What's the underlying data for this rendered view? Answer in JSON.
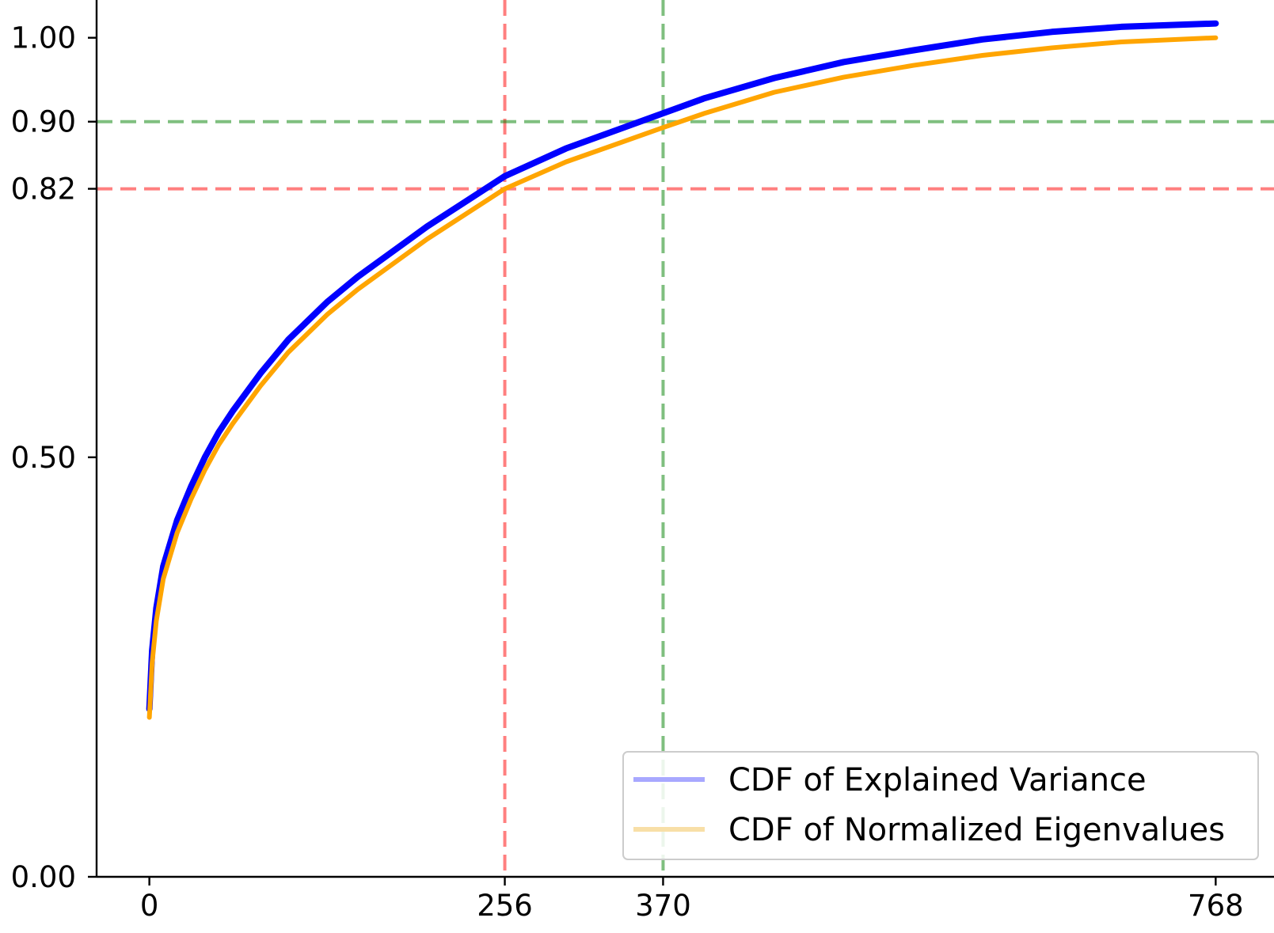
{
  "chart_data": {
    "type": "line",
    "title": "",
    "xlabel": "",
    "ylabel": "",
    "xlim": [
      -38,
      810
    ],
    "ylim": [
      0,
      1.045
    ],
    "x_ticks": [
      {
        "value": 0,
        "label": "0"
      },
      {
        "value": 256,
        "label": "256"
      },
      {
        "value": 370,
        "label": "370"
      },
      {
        "value": 768,
        "label": "768"
      }
    ],
    "y_ticks": [
      {
        "value": 0.0,
        "label": "0.00"
      },
      {
        "value": 0.5,
        "label": "0.50"
      },
      {
        "value": 0.82,
        "label": "0.82"
      },
      {
        "value": 0.9,
        "label": "0.90"
      },
      {
        "value": 1.0,
        "label": "1.00"
      }
    ],
    "series": [
      {
        "name": "CDF of Explained Variance",
        "color": "#0000ff",
        "legend_color": "#a8a8ff",
        "x": [
          0,
          2,
          5,
          10,
          20,
          30,
          40,
          50,
          60,
          80,
          100,
          128,
          150,
          200,
          256,
          300,
          370,
          400,
          450,
          500,
          550,
          600,
          650,
          700,
          768
        ],
        "y": [
          0.2,
          0.27,
          0.32,
          0.37,
          0.425,
          0.465,
          0.5,
          0.53,
          0.555,
          0.6,
          0.64,
          0.685,
          0.715,
          0.775,
          0.835,
          0.868,
          0.91,
          0.928,
          0.952,
          0.971,
          0.985,
          0.998,
          1.007,
          1.013,
          1.017
        ]
      },
      {
        "name": "CDF of Normalized Eigenvalues",
        "color": "#ffa500",
        "legend_color": "#f8dfa7",
        "x": [
          0,
          2,
          5,
          10,
          20,
          30,
          40,
          50,
          60,
          80,
          100,
          128,
          150,
          200,
          256,
          300,
          370,
          400,
          450,
          500,
          550,
          600,
          650,
          700,
          768
        ],
        "y": [
          0.19,
          0.255,
          0.305,
          0.355,
          0.41,
          0.45,
          0.485,
          0.515,
          0.54,
          0.585,
          0.625,
          0.67,
          0.7,
          0.76,
          0.82,
          0.852,
          0.893,
          0.91,
          0.935,
          0.953,
          0.967,
          0.979,
          0.988,
          0.995,
          1.0
        ]
      }
    ],
    "reference_lines": [
      {
        "orientation": "vertical",
        "value": 256,
        "color": "#ff0000"
      },
      {
        "orientation": "vertical",
        "value": 370,
        "color": "#008000"
      },
      {
        "orientation": "horizontal",
        "value": 0.82,
        "color": "#ff0000"
      },
      {
        "orientation": "horizontal",
        "value": 0.9,
        "color": "#008000"
      }
    ],
    "grid": false,
    "legend_position": "bottom-right"
  }
}
